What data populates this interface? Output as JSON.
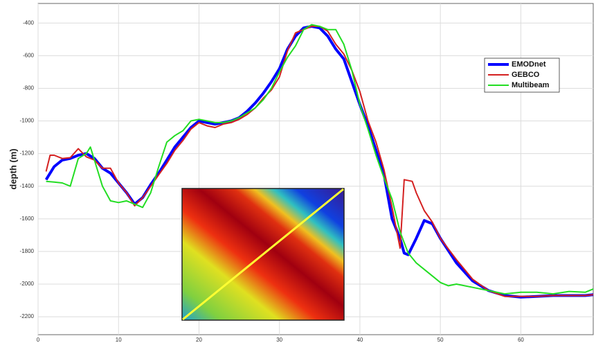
{
  "chart_data": {
    "type": "line",
    "y_label": "depth (m)",
    "xlim": [
      0,
      69
    ],
    "xticks": [
      0,
      10,
      20,
      30,
      40,
      50,
      60
    ],
    "ylim": [
      -2310,
      -280
    ],
    "yticks": [
      -2200,
      -2000,
      -1800,
      -1600,
      -1400,
      -1200,
      -1000,
      -800,
      -600,
      -400
    ],
    "grid": true,
    "legend": "upper right",
    "series": [
      {
        "name": "EMODnet",
        "color": "#0000ff",
        "width": 4,
        "x": [
          1,
          2,
          3,
          4,
          5,
          6,
          7,
          8,
          9,
          10,
          11,
          12,
          13,
          14,
          15,
          16,
          17,
          18,
          19,
          20,
          21,
          22,
          23,
          24,
          25,
          26,
          27,
          28,
          29,
          30,
          31,
          32,
          33,
          34,
          35,
          36,
          37,
          38,
          39,
          40,
          41,
          42,
          43,
          44,
          45,
          45.5,
          46,
          47,
          48,
          49,
          50,
          52,
          54,
          56,
          58,
          60,
          62,
          64,
          66,
          68,
          69
        ],
        "values": [
          -1360,
          -1280,
          -1240,
          -1230,
          -1210,
          -1200,
          -1230,
          -1290,
          -1320,
          -1380,
          -1440,
          -1510,
          -1470,
          -1390,
          -1320,
          -1240,
          -1160,
          -1100,
          -1040,
          -1000,
          -1010,
          -1020,
          -1010,
          -1000,
          -980,
          -940,
          -890,
          -830,
          -760,
          -680,
          -560,
          -480,
          -430,
          -420,
          -430,
          -480,
          -560,
          -620,
          -760,
          -900,
          -1030,
          -1180,
          -1330,
          -1600,
          -1720,
          -1810,
          -1820,
          -1720,
          -1610,
          -1630,
          -1720,
          -1870,
          -1980,
          -2040,
          -2070,
          -2080,
          -2075,
          -2070,
          -2070,
          -2070,
          -2065
        ]
      },
      {
        "name": "GEBCO",
        "color": "#d42020",
        "width": 2,
        "x": [
          1,
          1.5,
          2,
          3,
          4,
          5,
          6,
          7,
          8,
          9,
          10,
          11,
          12,
          13,
          14,
          15,
          16,
          17,
          18,
          19,
          20,
          21,
          22,
          23,
          24,
          25,
          26,
          27,
          28,
          29,
          30,
          31,
          32,
          33,
          34,
          35,
          36,
          37,
          38,
          39,
          40,
          41,
          42,
          43,
          44,
          45,
          45.5,
          46.5,
          47,
          48,
          49,
          50,
          52,
          54,
          56,
          58,
          60,
          62,
          64,
          66,
          68,
          69
        ],
        "values": [
          -1310,
          -1210,
          -1210,
          -1230,
          -1225,
          -1170,
          -1220,
          -1240,
          -1290,
          -1290,
          -1380,
          -1440,
          -1520,
          -1470,
          -1400,
          -1330,
          -1260,
          -1180,
          -1120,
          -1050,
          -1010,
          -1030,
          -1040,
          -1020,
          -1010,
          -990,
          -960,
          -920,
          -860,
          -810,
          -730,
          -570,
          -460,
          -440,
          -420,
          -420,
          -450,
          -530,
          -590,
          -690,
          -820,
          -1000,
          -1130,
          -1300,
          -1530,
          -1780,
          -1360,
          -1370,
          -1440,
          -1550,
          -1620,
          -1720,
          -1850,
          -1970,
          -2040,
          -2075,
          -2075,
          -2075,
          -2070,
          -2070,
          -2070,
          -2065
        ]
      },
      {
        "name": "Multibeam",
        "color": "#22dd22",
        "width": 2,
        "x": [
          1,
          2,
          3,
          4,
          5,
          6,
          6.5,
          7,
          8,
          9,
          10,
          11,
          12,
          13,
          14,
          15,
          16,
          17,
          18,
          19,
          20,
          21,
          22,
          23,
          24,
          25,
          26,
          27,
          28,
          29,
          30,
          31,
          32,
          33,
          34,
          35,
          36,
          37,
          38,
          39,
          40,
          41,
          42,
          43,
          44,
          45,
          46,
          47,
          48,
          49,
          50,
          51,
          52,
          54,
          56,
          58,
          60,
          62,
          64,
          66,
          68,
          69
        ],
        "values": [
          -1370,
          -1375,
          -1380,
          -1400,
          -1230,
          -1200,
          -1160,
          -1240,
          -1400,
          -1490,
          -1500,
          -1490,
          -1510,
          -1530,
          -1440,
          -1280,
          -1130,
          -1090,
          -1060,
          -1000,
          -990,
          -1000,
          -1010,
          -1010,
          -1000,
          -980,
          -950,
          -920,
          -870,
          -800,
          -700,
          -610,
          -540,
          -440,
          -410,
          -420,
          -440,
          -440,
          -530,
          -690,
          -900,
          -1050,
          -1210,
          -1350,
          -1480,
          -1680,
          -1810,
          -1870,
          -1910,
          -1950,
          -1990,
          -2010,
          -2000,
          -2020,
          -2040,
          -2060,
          -2050,
          -2050,
          -2060,
          -2045,
          -2050,
          -2030
        ]
      }
    ]
  }
}
